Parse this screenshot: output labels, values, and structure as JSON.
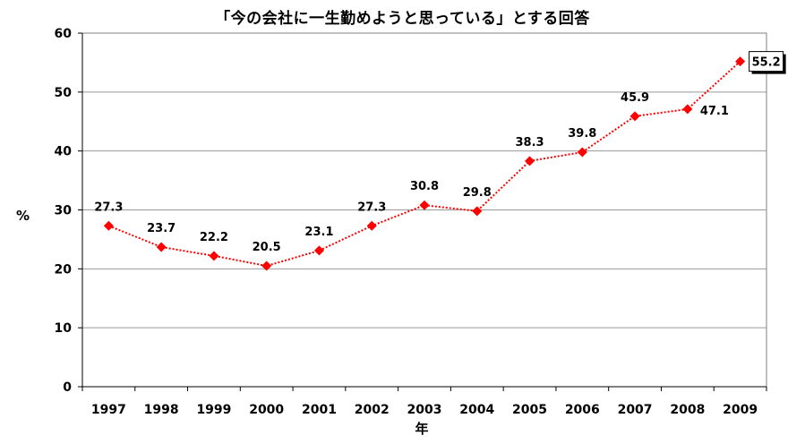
{
  "chart_data": {
    "type": "line",
    "title": "「今の会社に一生勤めようと思っている」とする回答",
    "xlabel": "年",
    "ylabel": "%",
    "categories": [
      "1997",
      "1998",
      "1999",
      "2000",
      "2001",
      "2002",
      "2003",
      "2004",
      "2005",
      "2006",
      "2007",
      "2008",
      "2009"
    ],
    "series": [
      {
        "values": [
          27.3,
          23.7,
          22.2,
          20.5,
          23.1,
          27.3,
          30.8,
          29.8,
          38.3,
          39.8,
          45.9,
          47.1,
          55.2
        ]
      }
    ],
    "yticks": [
      0,
      10,
      20,
      30,
      40,
      50,
      60
    ],
    "ylim": [
      0,
      60
    ],
    "grid": true,
    "legend": "none",
    "line_color": "#ff0000",
    "marker_color": "#ff0000",
    "highlighted_label": "55.2"
  }
}
